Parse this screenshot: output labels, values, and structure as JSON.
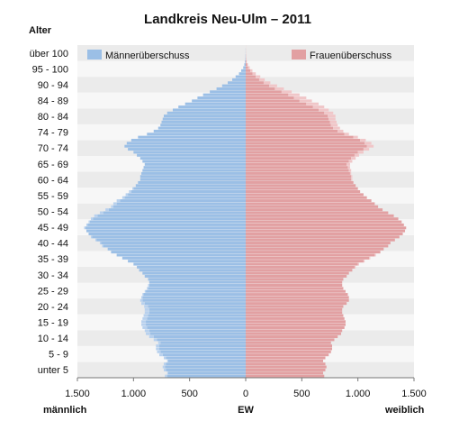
{
  "chart_data": {
    "type": "bar",
    "title": "Landkreis Neu-Ulm – 2011",
    "y_axis_title": "Alter",
    "x_axis_unit": "EW",
    "x_left_label": "männlich",
    "x_right_label": "weiblich",
    "x_ticks": [
      "1.500",
      "1.000",
      "500",
      "0",
      "500",
      "1.000",
      "1.500"
    ],
    "x_tick_values": [
      -1500,
      -1000,
      -500,
      0,
      500,
      1000,
      1500
    ],
    "xlim": [
      -1500,
      1500
    ],
    "age_groups": [
      "unter 5",
      "5 - 9",
      "10 - 14",
      "15 - 19",
      "20 - 24",
      "25 - 29",
      "30 - 34",
      "35 - 39",
      "40 - 44",
      "45 - 49",
      "50 - 54",
      "55 - 59",
      "60 - 64",
      "65 - 69",
      "70 - 74",
      "74 - 79",
      "80 - 84",
      "84 - 89",
      "90 - 94",
      "95 - 100",
      "über 100"
    ],
    "legend": {
      "male_surplus": "Männerüberschuss",
      "female_surplus": "Frauenüberschuss"
    },
    "colors": {
      "male": "#9bbfe6",
      "female": "#e2a0a2",
      "male_surplus": "#b8d1ee",
      "female_surplus": "#f0c6c8",
      "band_dark": "#ebebeb",
      "band_light": "#f7f7f7"
    },
    "series": [
      {
        "name": "männlich",
        "values_by_age": [
          720,
          700,
          730,
          740,
          730,
          700,
          730,
          770,
          790,
          800,
          800,
          780,
          820,
          860,
          890,
          900,
          920,
          930,
          930,
          920,
          910,
          900,
          900,
          905,
          930,
          940,
          930,
          920,
          900,
          880,
          870,
          860,
          870,
          900,
          920,
          950,
          970,
          1000,
          1050,
          1100,
          1150,
          1200,
          1230,
          1280,
          1300,
          1340,
          1380,
          1400,
          1420,
          1440,
          1420,
          1400,
          1380,
          1350,
          1300,
          1250,
          1200,
          1180,
          1150,
          1100,
          1070,
          1040,
          1010,
          980,
          960,
          940,
          940,
          930,
          920,
          910,
          900,
          920,
          940,
          970,
          1000,
          1050,
          1080,
          1060,
          1020,
          960,
          880,
          820,
          780,
          760,
          750,
          740,
          730,
          700,
          650,
          600,
          540,
          480,
          430,
          380,
          320,
          260,
          210,
          160,
          120,
          90,
          60,
          40,
          22,
          12,
          6,
          3,
          2,
          1,
          1,
          0
        ]
      },
      {
        "name": "weiblich",
        "values_by_age": [
          700,
          690,
          710,
          720,
          710,
          690,
          710,
          740,
          760,
          770,
          770,
          760,
          790,
          820,
          850,
          860,
          880,
          890,
          890,
          880,
          870,
          860,
          860,
          870,
          900,
          920,
          920,
          910,
          890,
          870,
          860,
          860,
          870,
          900,
          920,
          950,
          980,
          1010,
          1060,
          1110,
          1160,
          1200,
          1230,
          1270,
          1290,
          1330,
          1370,
          1400,
          1420,
          1430,
          1410,
          1390,
          1360,
          1320,
          1270,
          1220,
          1180,
          1150,
          1120,
          1080,
          1050,
          1020,
          1000,
          980,
          960,
          950,
          950,
          940,
          940,
          930,
          930,
          950,
          980,
          1010,
          1050,
          1100,
          1140,
          1120,
          1070,
          1000,
          920,
          870,
          840,
          820,
          810,
          800,
          800,
          780,
          740,
          700,
          650,
          590,
          540,
          480,
          410,
          340,
          280,
          220,
          170,
          130,
          90,
          60,
          36,
          20,
          10,
          5,
          3,
          2,
          1,
          1
        ]
      }
    ]
  }
}
